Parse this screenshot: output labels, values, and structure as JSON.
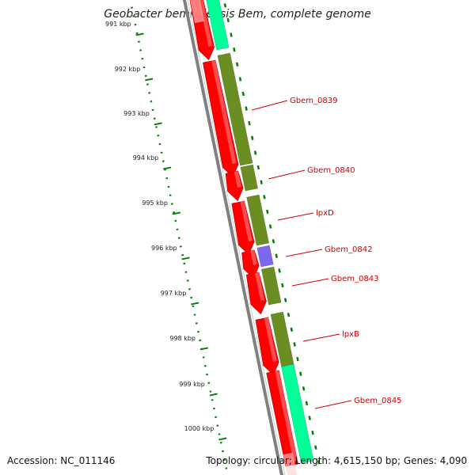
{
  "title": "Geobacter bemidjiensis Bem, complete genome",
  "accession": "Accession: NC_011146",
  "topology": "Topology: circular; Length: 4,615,150 bp; Genes: 4,090",
  "ticks": [
    "991 kbp",
    "992 kbp",
    "993 kbp",
    "994 kbp",
    "995 kbp",
    "996 kbp",
    "997 kbp",
    "998 kbp",
    "999 kbp",
    "1000 kbp"
  ],
  "gene_labels": [
    "Gbem_0839",
    "Gbem_0840",
    "lpxD",
    "Gbem_0842",
    "Gbem_0843",
    "lpxB",
    "Gbem_0845"
  ],
  "colors": {
    "cds_forward": "#ff0000",
    "feature_olive": "#6b8e23",
    "feature_cyan": "#00ff99",
    "feature_purple": "#7b68ee",
    "backbone": "#808080",
    "tick": "#008000",
    "label": "#cc0000"
  }
}
